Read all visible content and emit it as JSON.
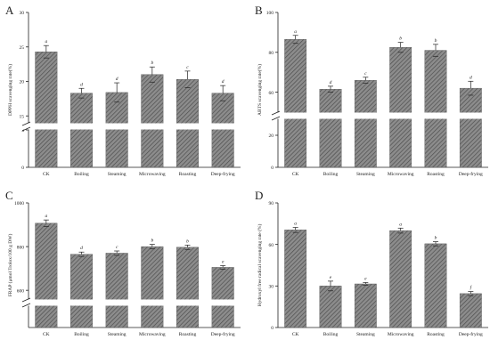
{
  "figure": {
    "panels": [
      {
        "letter": "A"
      },
      {
        "letter": "B"
      },
      {
        "letter": "C"
      },
      {
        "letter": "D"
      }
    ]
  },
  "chart_data": [
    {
      "type": "bar",
      "panel": "A",
      "categories": [
        "CK",
        "Boiling",
        "Steaming",
        "Microwaving",
        "Roasting",
        "Deep-frying"
      ],
      "values": [
        24.3,
        18.3,
        18.4,
        21.0,
        20.3,
        18.3
      ],
      "errors": [
        0.9,
        0.7,
        1.4,
        1.1,
        1.2,
        1.1
      ],
      "letters": [
        "a",
        "d",
        "d",
        "b",
        "c",
        "d"
      ],
      "ylabel": "DPPH scavenging rate(%)",
      "break_axis": true,
      "lower_range": [
        0,
        3
      ],
      "upper_range": [
        14,
        30
      ],
      "lower_ticks": [
        0,
        3
      ],
      "upper_ticks": [
        15,
        20,
        25,
        30
      ],
      "fill_pattern": "diagonal-hatch",
      "bar_color": "#7a7a7a",
      "grid": false
    },
    {
      "type": "bar",
      "panel": "B",
      "categories": [
        "CK",
        "Boiling",
        "Steaming",
        "Microwaving",
        "Roasting",
        "Deep-frying"
      ],
      "values": [
        86.5,
        61.5,
        66.0,
        82.5,
        81.0,
        62.0
      ],
      "errors": [
        2.0,
        1.5,
        1.5,
        2.5,
        3.0,
        3.5
      ],
      "letters": [
        "a",
        "d",
        "c",
        "b",
        "b",
        "d"
      ],
      "ylabel": "ABTS scavenging rate(%)",
      "break_axis": true,
      "lower_range": [
        0,
        30
      ],
      "upper_range": [
        50,
        100
      ],
      "lower_ticks": [
        0,
        20
      ],
      "upper_ticks": [
        60,
        80,
        100
      ],
      "fill_pattern": "diagonal-hatch",
      "bar_color": "#7a7a7a",
      "grid": false
    },
    {
      "type": "bar",
      "panel": "C",
      "categories": [
        "CK",
        "Boiling",
        "Steaming",
        "Microwaving",
        "Roasting",
        "Deep-frying"
      ],
      "values": [
        907,
        765,
        770,
        800,
        797,
        705
      ],
      "errors": [
        15,
        10,
        10,
        10,
        10,
        8
      ],
      "letters": [
        "a",
        "d",
        "c",
        "b",
        "b",
        "e"
      ],
      "ylabel": "FRAP (μmol Trolox/100 g DW)",
      "break_axis": true,
      "lower_range": [
        0,
        40
      ],
      "upper_range": [
        560,
        1000
      ],
      "lower_ticks": [],
      "upper_ticks": [
        600,
        800,
        1000
      ],
      "fill_pattern": "diagonal-hatch",
      "bar_color": "#7a7a7a",
      "grid": false
    },
    {
      "type": "bar",
      "panel": "D",
      "categories": [
        "CK",
        "Boiling",
        "Steaming",
        "Microwaving",
        "Roasting",
        "Deep-frying"
      ],
      "values": [
        70.5,
        30.0,
        31.5,
        70.0,
        60.5,
        24.5
      ],
      "errors": [
        1.8,
        3.5,
        1.0,
        1.8,
        1.5,
        1.5
      ],
      "letters": [
        "a",
        "e",
        "e",
        "a",
        "b",
        "f"
      ],
      "ylabel": "Hydroxyl free radical scavenging rate (%)",
      "break_axis": false,
      "range": [
        0,
        90
      ],
      "ticks": [
        0,
        30,
        60,
        90
      ],
      "fill_pattern": "diagonal-hatch",
      "bar_color": "#7a7a7a",
      "grid": false
    }
  ]
}
